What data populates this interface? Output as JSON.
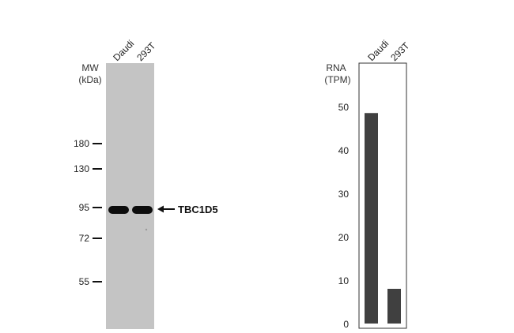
{
  "blot": {
    "mw_label": "MW",
    "mw_unit": "(kDa)",
    "lanes": [
      "Daudi",
      "293T"
    ],
    "markers": [
      "180",
      "130",
      "95",
      "72",
      "55"
    ],
    "target_label": "TBC1D5"
  },
  "chart_data": [
    {
      "type": "blot",
      "lanes": [
        "Daudi",
        "293T"
      ],
      "marker_values_kda": [
        180,
        130,
        95,
        72,
        55
      ],
      "band_kda": 95,
      "band_label": "TBC1D5",
      "ylabel": "MW (kDa)",
      "band_color": "#0d0d0d",
      "membrane_color": "#c4c4c4"
    },
    {
      "type": "bar",
      "categories": [
        "Daudi",
        "293T"
      ],
      "values": [
        48.5,
        8
      ],
      "ylabel": "RNA (TPM)",
      "ylabel_line1": "RNA",
      "ylabel_line2": "(TPM)",
      "yticks": [
        "50",
        "40",
        "30",
        "20",
        "10",
        "0"
      ],
      "ylim": [
        0,
        57
      ],
      "bar_color": "#404040",
      "grid": false
    }
  ]
}
